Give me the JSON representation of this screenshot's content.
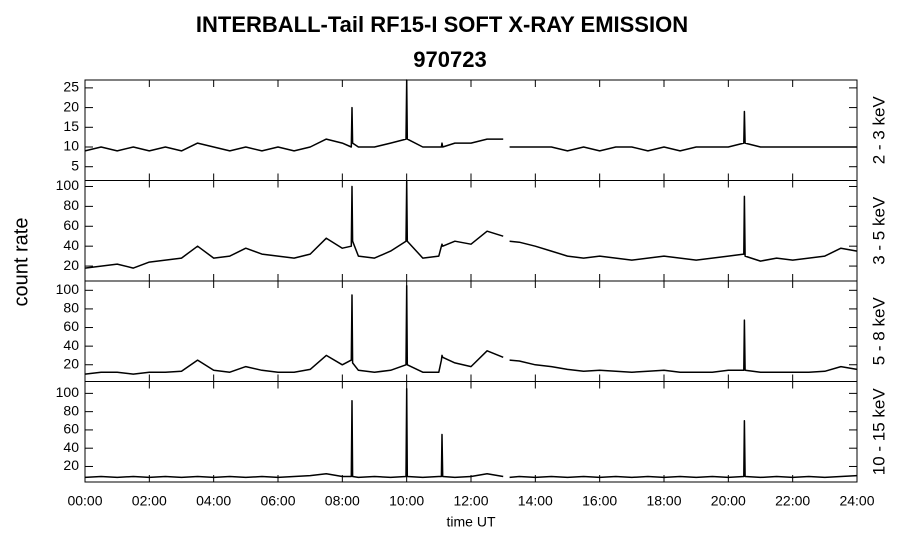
{
  "chart_data": {
    "type": "line",
    "title": "INTERBALL-Tail RF15-I SOFT X-RAY EMISSION",
    "subtitle": "970723",
    "ylabel": "count rate",
    "xlabel": "time UT",
    "x": [
      0,
      0.5,
      1,
      1.5,
      2,
      2.5,
      3,
      3.5,
      4,
      4.5,
      5,
      5.5,
      6,
      6.5,
      7,
      7.5,
      8,
      8.28,
      8.3,
      8.32,
      8.5,
      9,
      9.5,
      9.98,
      10,
      10.02,
      10.5,
      11,
      11.08,
      11.1,
      11.12,
      11.5,
      12,
      12.5,
      13,
      13.1,
      13.2,
      13.5,
      14,
      14.5,
      15,
      15.5,
      16,
      16.5,
      17,
      17.5,
      18,
      18.5,
      19,
      19.5,
      20,
      20.48,
      20.5,
      20.52,
      21,
      21.5,
      22,
      22.5,
      23,
      23.5,
      24
    ],
    "xlim": [
      0,
      24
    ],
    "xticks": [
      {
        "value": 0,
        "label": "00:00"
      },
      {
        "value": 2,
        "label": "02:00"
      },
      {
        "value": 4,
        "label": "04:00"
      },
      {
        "value": 6,
        "label": "06:00"
      },
      {
        "value": 8,
        "label": "08:00"
      },
      {
        "value": 10,
        "label": "10:00"
      },
      {
        "value": 12,
        "label": "12:00"
      },
      {
        "value": 14,
        "label": "14:00"
      },
      {
        "value": 16,
        "label": "16:00"
      },
      {
        "value": 18,
        "label": "18:00"
      },
      {
        "value": 20,
        "label": "20:00"
      },
      {
        "value": 22,
        "label": "22:00"
      },
      {
        "value": 24,
        "label": "24:00"
      }
    ],
    "series": [
      {
        "name": "2 - 3 keV",
        "color": "#000000",
        "ylim": [
          1.5,
          27
        ],
        "yticks": [
          5,
          10,
          15,
          20,
          25
        ],
        "values": [
          9,
          10,
          9,
          10,
          9,
          10,
          9,
          11,
          10,
          9,
          10,
          9,
          10,
          9,
          10,
          12,
          11,
          10,
          20,
          11,
          10,
          10,
          11,
          12,
          27,
          12,
          10,
          10,
          10,
          11,
          10,
          11,
          11,
          12,
          12,
          null,
          10,
          10,
          10,
          10,
          9,
          10,
          9,
          10,
          10,
          9,
          10,
          9,
          10,
          10,
          10,
          11,
          19,
          11,
          10,
          10,
          10,
          10,
          10,
          10,
          10
        ]
      },
      {
        "name": "3 - 5 keV",
        "color": "#000000",
        "ylim": [
          5,
          106
        ],
        "yticks": [
          20,
          40,
          60,
          80,
          100
        ],
        "values": [
          18,
          20,
          22,
          18,
          24,
          26,
          28,
          40,
          28,
          30,
          38,
          32,
          30,
          28,
          32,
          48,
          38,
          40,
          100,
          45,
          30,
          28,
          35,
          45,
          105,
          45,
          28,
          30,
          40,
          42,
          40,
          45,
          42,
          55,
          50,
          null,
          45,
          44,
          40,
          35,
          30,
          28,
          30,
          28,
          26,
          28,
          30,
          28,
          26,
          28,
          30,
          32,
          90,
          30,
          25,
          28,
          26,
          28,
          30,
          38,
          35
        ]
      },
      {
        "name": "5 - 8 keV",
        "color": "#000000",
        "ylim": [
          2,
          110
        ],
        "yticks": [
          20,
          40,
          60,
          80,
          100
        ],
        "values": [
          10,
          12,
          12,
          10,
          12,
          12,
          13,
          25,
          14,
          12,
          18,
          14,
          12,
          12,
          15,
          30,
          20,
          25,
          95,
          22,
          14,
          12,
          14,
          20,
          105,
          20,
          12,
          12,
          25,
          30,
          28,
          22,
          18,
          35,
          28,
          null,
          25,
          24,
          20,
          18,
          15,
          13,
          14,
          13,
          12,
          13,
          14,
          12,
          12,
          12,
          14,
          14,
          68,
          14,
          12,
          12,
          12,
          12,
          13,
          18,
          15
        ]
      },
      {
        "name": "10 - 15 keV",
        "color": "#000000",
        "ylim": [
          3,
          113
        ],
        "yticks": [
          20,
          40,
          60,
          80,
          100
        ],
        "values": [
          8,
          9,
          8,
          9,
          8,
          9,
          8,
          9,
          8,
          9,
          8,
          9,
          8,
          9,
          10,
          12,
          9,
          9,
          92,
          9,
          8,
          9,
          8,
          9,
          105,
          9,
          8,
          9,
          9,
          55,
          9,
          8,
          9,
          12,
          9,
          null,
          8,
          9,
          8,
          9,
          8,
          9,
          8,
          9,
          8,
          9,
          8,
          9,
          8,
          9,
          8,
          9,
          70,
          9,
          8,
          9,
          8,
          9,
          8,
          9,
          10
        ]
      }
    ]
  }
}
